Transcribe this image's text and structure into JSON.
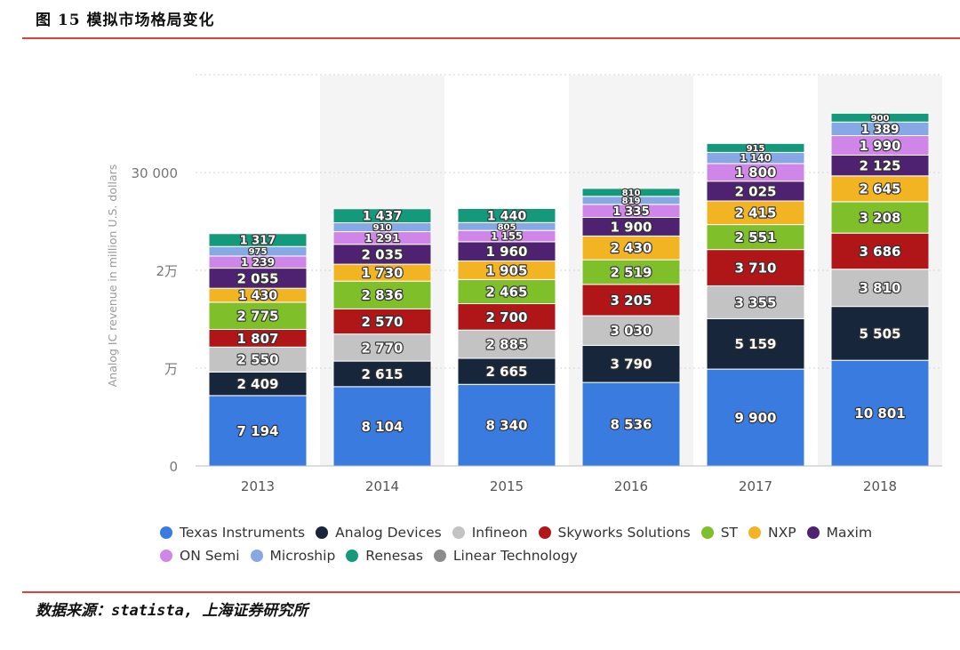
{
  "header": {
    "title": "图 15 模拟市场格局变化"
  },
  "footer": {
    "source": "数据来源：statista, 上海证券研究所"
  },
  "chart_data": {
    "type": "bar",
    "stacked": true,
    "categories": [
      "2013",
      "2014",
      "2015",
      "2016",
      "2017",
      "2018"
    ],
    "ylabel": "Analog IC revenue in million U.S. dollars",
    "ylim": [
      0,
      40000
    ],
    "yticks": [
      {
        "value": 0,
        "label": "0"
      },
      {
        "value": 10000,
        "label": "万"
      },
      {
        "value": 20000,
        "label": "2万"
      },
      {
        "value": 30000,
        "label": "30 000"
      }
    ],
    "grid": true,
    "legend_position": "bottom",
    "series": [
      {
        "name": "Texas Instruments",
        "color": "#3a7be0",
        "values": [
          7194,
          8104,
          8340,
          8536,
          9900,
          10801
        ],
        "labels": [
          "7 194",
          "8 104",
          "8 340",
          "8 536",
          "9 900",
          "10 801"
        ]
      },
      {
        "name": "Analog Devices",
        "color": "#17263a",
        "values": [
          2409,
          2615,
          2665,
          3790,
          5159,
          5505
        ],
        "labels": [
          "2 409",
          "2 615",
          "2 665",
          "3 790",
          "5 159",
          "5 505"
        ]
      },
      {
        "name": "Infineon",
        "color": "#c3c3c3",
        "values": [
          2550,
          2770,
          2885,
          3030,
          3355,
          3810
        ],
        "labels": [
          "2 550",
          "2 770",
          "2 885",
          "3 030",
          "3 355",
          "3 810"
        ]
      },
      {
        "name": "Skyworks Solutions",
        "color": "#b01518",
        "values": [
          1807,
          2570,
          2700,
          3205,
          3710,
          3686
        ],
        "labels": [
          "1 807",
          "2 570",
          "2 700",
          "3 205",
          "3 710",
          "3 686"
        ]
      },
      {
        "name": "ST",
        "color": "#7fbf2a",
        "values": [
          2775,
          2836,
          2465,
          2519,
          2551,
          3208
        ],
        "labels": [
          "2 775",
          "2 836",
          "2 465",
          "2 519",
          "2 551",
          "3 208"
        ]
      },
      {
        "name": "NXP",
        "color": "#f2b422",
        "values": [
          1430,
          1730,
          1905,
          2430,
          2415,
          2645
        ],
        "labels": [
          "1 430",
          "1 730",
          "1 905",
          "2 430",
          "2 415",
          "2 645"
        ]
      },
      {
        "name": "Maxim",
        "color": "#4e2171",
        "values": [
          2055,
          2035,
          1960,
          1900,
          2025,
          2125
        ],
        "labels": [
          "2 055",
          "2 035",
          "1 960",
          "1 900",
          "2 025",
          "2 125"
        ]
      },
      {
        "name": "ON Semi",
        "color": "#cf86e8",
        "values": [
          1239,
          1291,
          1155,
          1335,
          1800,
          1990
        ],
        "labels": [
          "1 239",
          "1 291",
          "1 155",
          "1 335",
          "1 800",
          "1 990"
        ]
      },
      {
        "name": "Microship",
        "color": "#86a9e6",
        "values": [
          975,
          910,
          805,
          819,
          1140,
          1389
        ],
        "labels": [
          "975",
          "910",
          "805",
          "819",
          "1 140",
          "1 389"
        ]
      },
      {
        "name": "Renesas",
        "color": "#149a7b",
        "values": [
          1317,
          1437,
          1440,
          810,
          915,
          900
        ],
        "labels": [
          "1 317",
          "1 437",
          "1 440",
          "810",
          "915",
          "900"
        ]
      },
      {
        "name": "Linear Technology",
        "color": "#8c8c8c",
        "values": [
          0,
          0,
          0,
          0,
          0,
          0
        ],
        "labels": [
          "",
          "",
          "",
          "",
          "",
          ""
        ]
      }
    ]
  }
}
